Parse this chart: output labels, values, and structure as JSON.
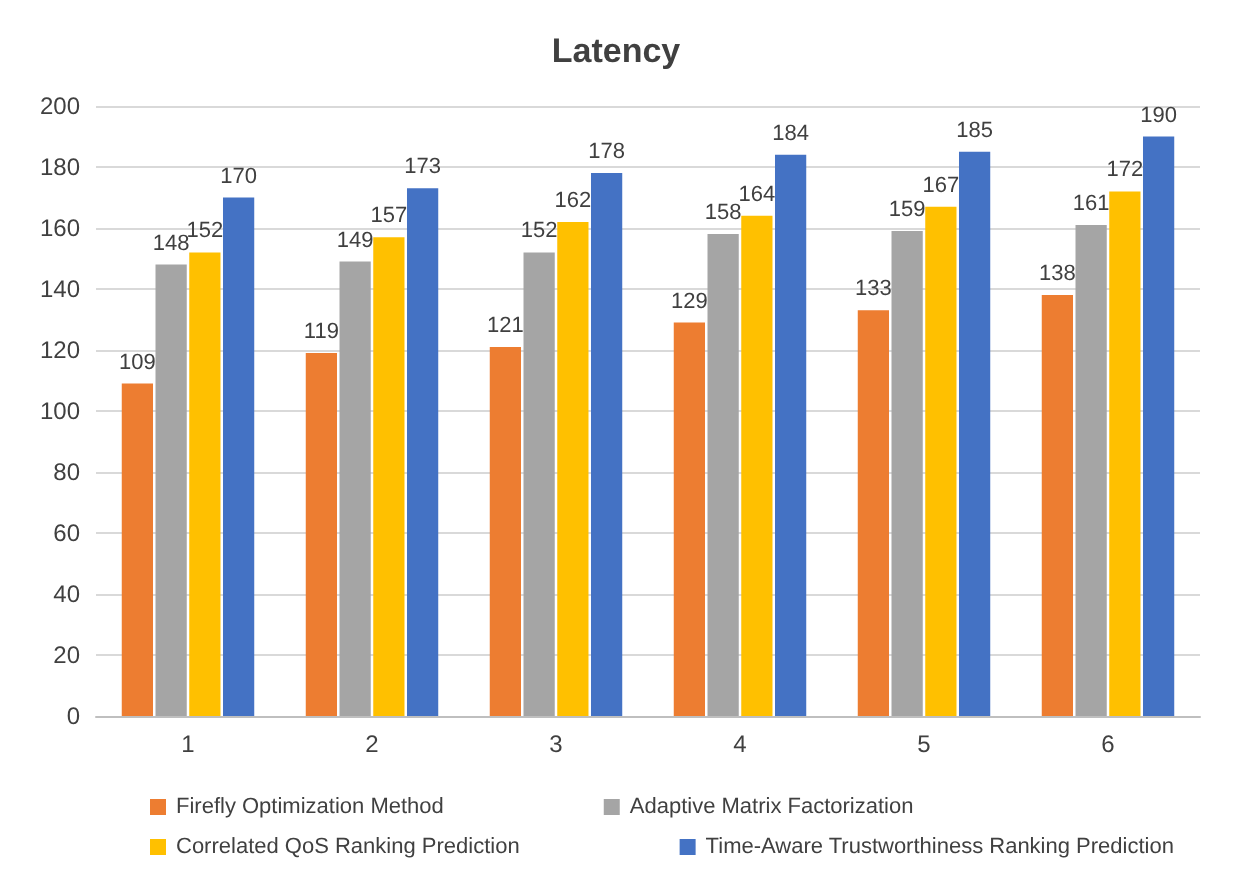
{
  "chart_data": {
    "type": "bar",
    "title": "Latency",
    "categories": [
      "1",
      "2",
      "3",
      "4",
      "5",
      "6"
    ],
    "series": [
      {
        "name": "Firefly Optimization Method",
        "color": "#ed7d31",
        "values": [
          109,
          119,
          121,
          129,
          133,
          138
        ]
      },
      {
        "name": "Adaptive Matrix Factorization",
        "color": "#a5a5a5",
        "values": [
          148,
          149,
          152,
          158,
          159,
          161
        ]
      },
      {
        "name": "Correlated QoS Ranking Prediction",
        "color": "#ffc000",
        "values": [
          152,
          157,
          162,
          164,
          167,
          172
        ]
      },
      {
        "name": "Time-Aware Trustworthiness Ranking Prediction",
        "color": "#4472c4",
        "values": [
          170,
          173,
          178,
          184,
          185,
          190
        ]
      }
    ],
    "ylim": [
      0,
      200
    ],
    "yticks": [
      0,
      20,
      40,
      60,
      80,
      100,
      120,
      140,
      160,
      180,
      200
    ],
    "grid": "y",
    "legend": "bottom",
    "data_labels": true
  }
}
